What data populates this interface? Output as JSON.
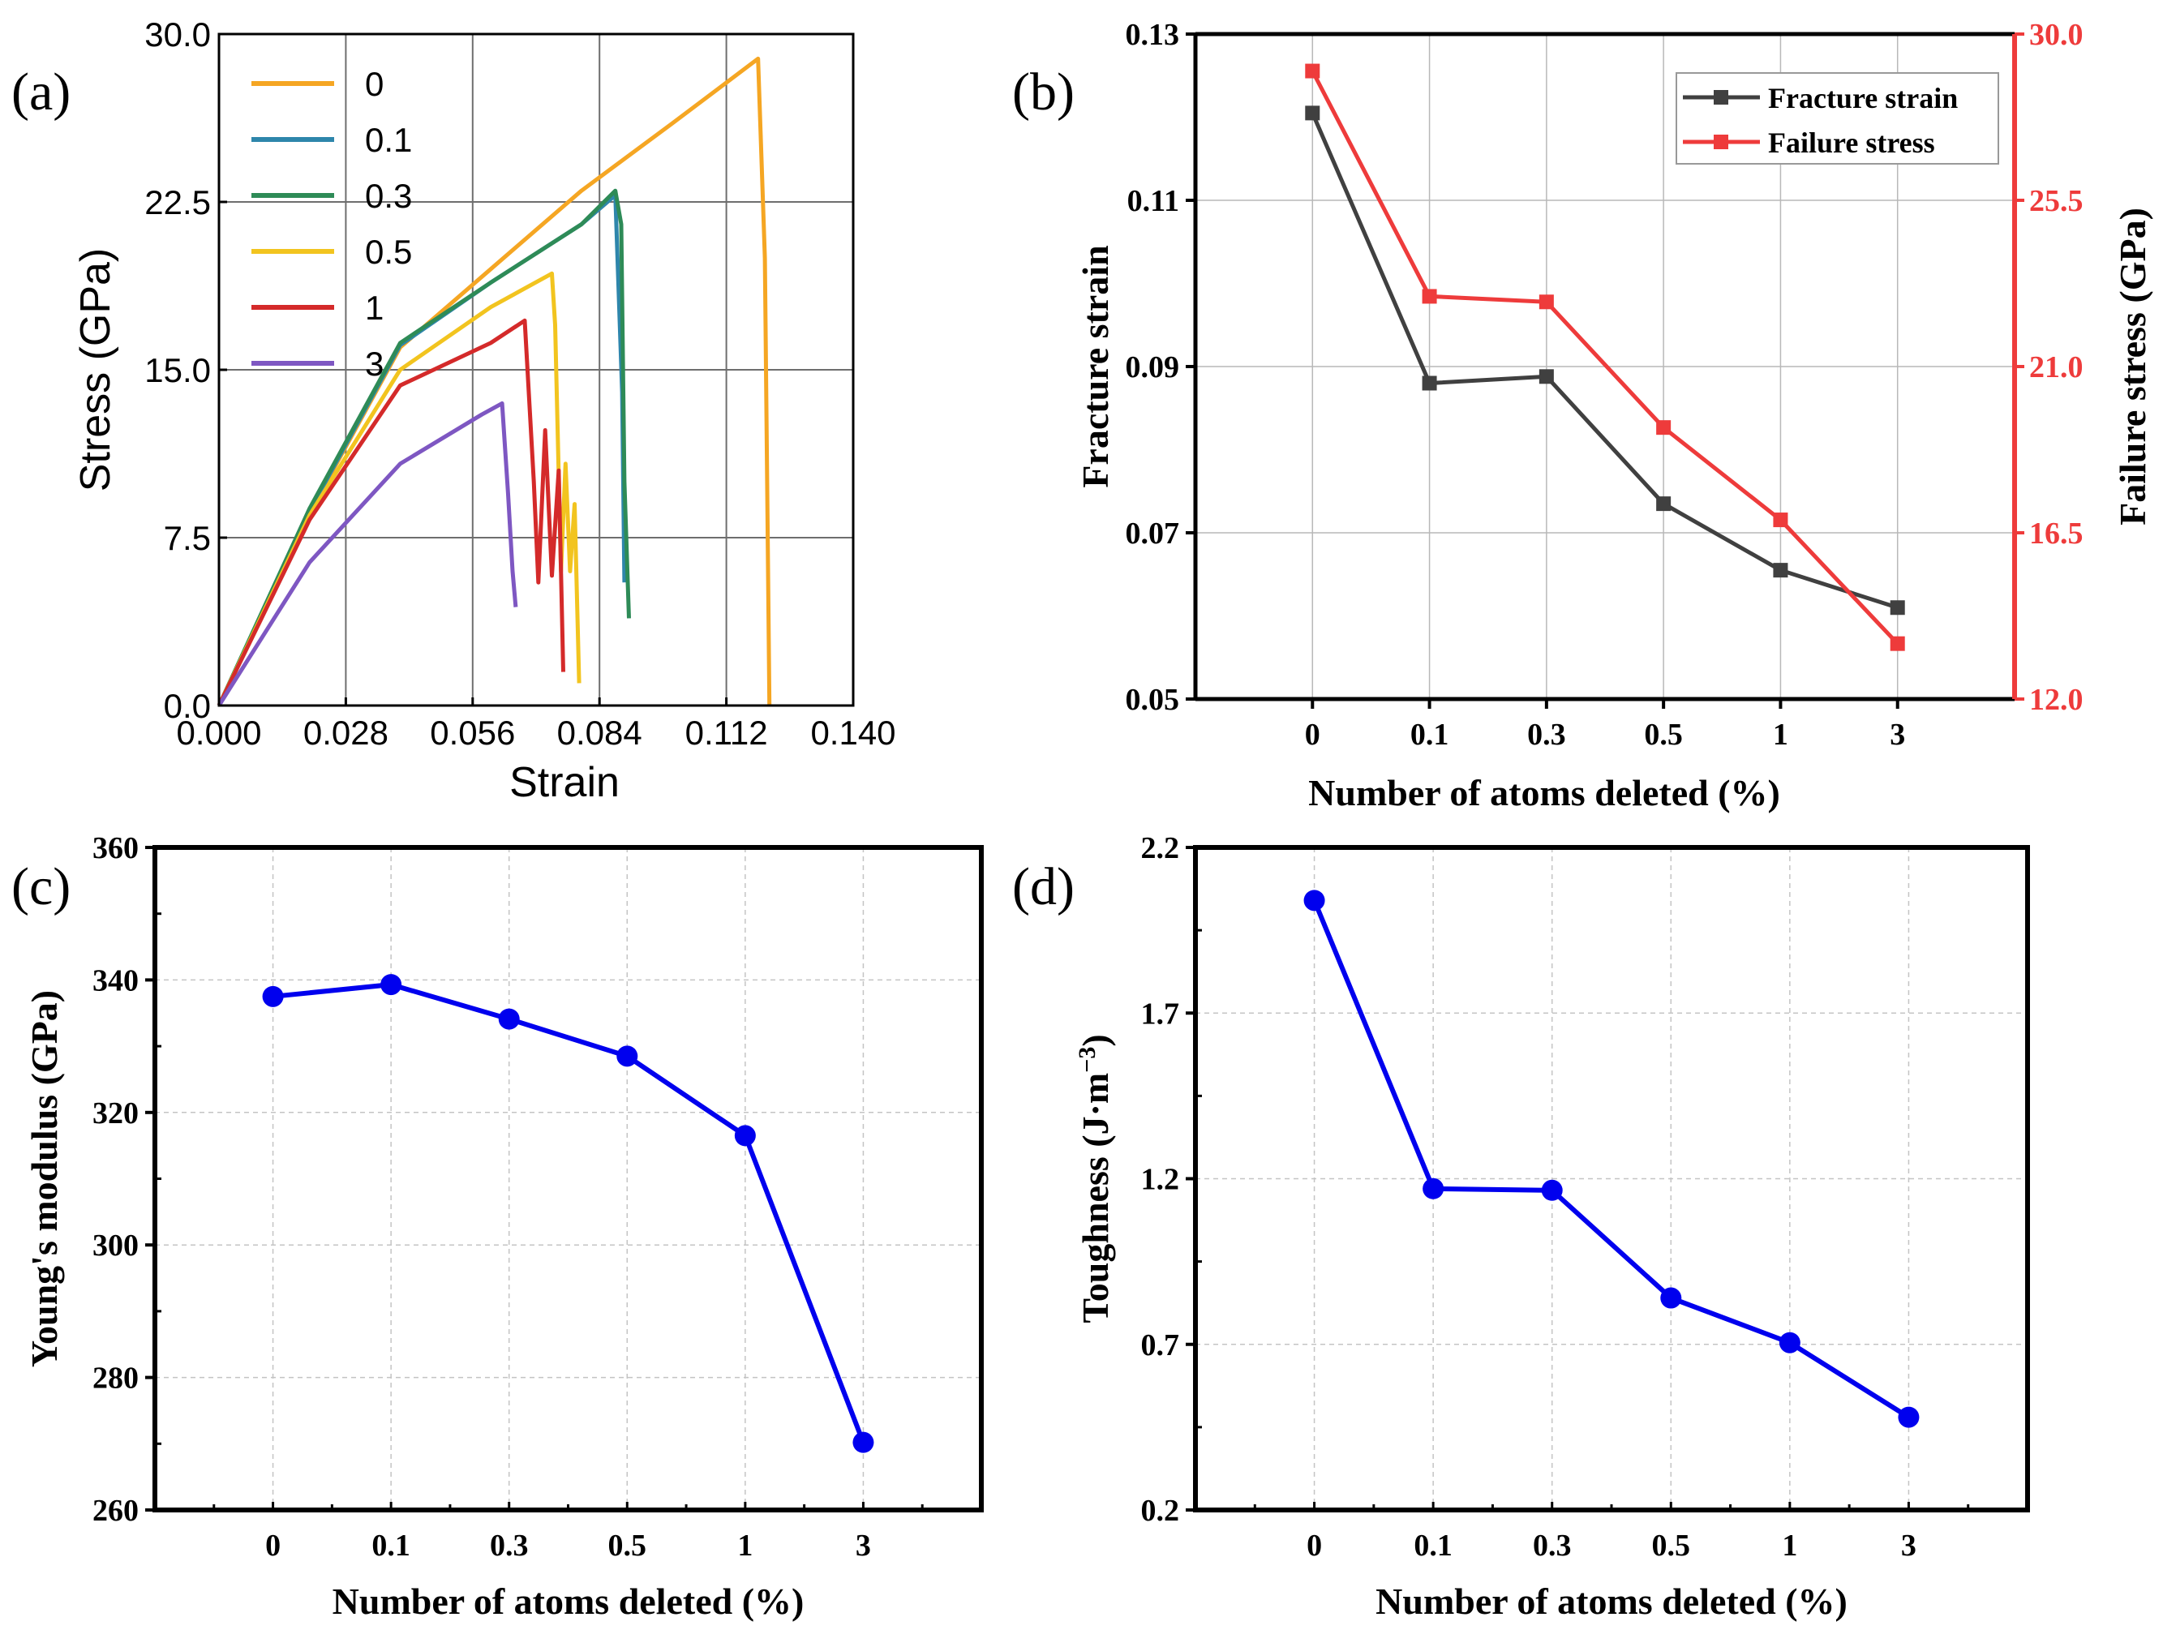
{
  "chart_data": [
    {
      "panel": "(a)",
      "type": "line",
      "xlabel": "Strain",
      "ylabel": "Stress (GPa)",
      "xlim": [
        0.0,
        0.14
      ],
      "ylim": [
        0.0,
        30.0
      ],
      "xticks": [
        "0.000",
        "0.028",
        "0.056",
        "0.084",
        "0.112",
        "0.140"
      ],
      "xtick_values": [
        0.0,
        0.028,
        0.056,
        0.084,
        0.112,
        0.14
      ],
      "yticks": [
        "0.0",
        "7.5",
        "15.0",
        "22.5",
        "30.0"
      ],
      "ytick_values": [
        0.0,
        7.5,
        15.0,
        22.5,
        30.0
      ],
      "grid": true,
      "legend_position": "top-left",
      "series": [
        {
          "name": "0",
          "color": "#F5A623",
          "x": [
            0,
            0.02,
            0.04,
            0.06,
            0.08,
            0.1,
            0.119,
            0.1205,
            0.1215
          ],
          "y": [
            0,
            8.6,
            16.0,
            19.5,
            23.0,
            26.0,
            28.9,
            20.0,
            0.0
          ]
        },
        {
          "name": "0.1",
          "color": "#2E86AB",
          "x": [
            0,
            0.02,
            0.04,
            0.06,
            0.08,
            0.0875,
            0.089,
            0.0895
          ],
          "y": [
            0,
            8.7,
            16.1,
            18.9,
            21.5,
            22.8,
            14.0,
            5.5
          ]
        },
        {
          "name": "0.3",
          "color": "#2E8B57",
          "x": [
            0,
            0.02,
            0.04,
            0.06,
            0.08,
            0.0875,
            0.0888,
            0.0895,
            0.0905
          ],
          "y": [
            0,
            8.8,
            16.2,
            18.9,
            21.5,
            23.0,
            21.5,
            10.0,
            3.9
          ]
        },
        {
          "name": "0.5",
          "color": "#F2C41F",
          "x": [
            0,
            0.02,
            0.04,
            0.06,
            0.0735,
            0.0742,
            0.0755,
            0.0765,
            0.0775,
            0.0785,
            0.0795
          ],
          "y": [
            0,
            8.5,
            15.0,
            17.8,
            19.3,
            17.0,
            6.0,
            10.8,
            6.0,
            9.0,
            1.0
          ]
        },
        {
          "name": "1",
          "color": "#D42A2A",
          "x": [
            0,
            0.02,
            0.04,
            0.06,
            0.0675,
            0.0695,
            0.0705,
            0.072,
            0.0735,
            0.075,
            0.076
          ],
          "y": [
            0,
            8.3,
            14.3,
            16.2,
            17.2,
            10.0,
            5.5,
            12.3,
            5.8,
            10.5,
            1.5
          ]
        },
        {
          "name": "3",
          "color": "#7E57C2",
          "x": [
            0,
            0.02,
            0.04,
            0.058,
            0.0625,
            0.0638,
            0.0648,
            0.0655
          ],
          "y": [
            0,
            6.4,
            10.8,
            13.0,
            13.5,
            9.5,
            6.0,
            4.4
          ]
        }
      ]
    },
    {
      "panel": "(b)",
      "type": "line",
      "xlabel": "Number of atoms deleted (%)",
      "ylabel": "Fracture strain",
      "ylabel_right": "Failure stress (GPa)",
      "categories": [
        "0",
        "0.1",
        "0.3",
        "0.5",
        "1",
        "3"
      ],
      "ylim": [
        0.05,
        0.13
      ],
      "ylim_right": [
        12.0,
        30.0
      ],
      "yticks": [
        "0.05",
        "0.07",
        "0.09",
        "0.11",
        "0.13"
      ],
      "ytick_values": [
        0.05,
        0.07,
        0.09,
        0.11,
        0.13
      ],
      "yticks_right": [
        "12.0",
        "16.5",
        "21.0",
        "25.5",
        "30.0"
      ],
      "ytick_values_right": [
        12.0,
        16.5,
        21.0,
        25.5,
        30.0
      ],
      "grid": true,
      "legend_position": "top-right",
      "series": [
        {
          "name": "Fracture strain",
          "axis": "left",
          "color": "#404040",
          "values": [
            0.1205,
            0.088,
            0.0888,
            0.0735,
            0.0655,
            0.061
          ]
        },
        {
          "name": "Failure stress",
          "axis": "right",
          "color": "#EE3B3B",
          "values": [
            29.0,
            22.9,
            22.75,
            19.35,
            16.85,
            13.5
          ]
        }
      ]
    },
    {
      "panel": "(c)",
      "type": "line",
      "xlabel": "Number of atoms deleted (%)",
      "ylabel": "Young's modulus (GPa)",
      "categories": [
        "0",
        "0.1",
        "0.3",
        "0.5",
        "1",
        "3"
      ],
      "ylim": [
        260,
        360
      ],
      "yticks": [
        "260",
        "280",
        "300",
        "320",
        "340",
        "360"
      ],
      "ytick_values": [
        260,
        280,
        300,
        320,
        340,
        360
      ],
      "grid": true,
      "series": [
        {
          "name": "Young's modulus",
          "color": "#0000EE",
          "values": [
            337.5,
            339.3,
            334.1,
            328.5,
            316.5,
            270.2
          ]
        }
      ]
    },
    {
      "panel": "(d)",
      "type": "line",
      "xlabel": "Number of atoms deleted (%)",
      "ylabel": "Toughness (J·m",
      "ylabel_sup": "−3",
      "ylabel_close": ")",
      "categories": [
        "0",
        "0.1",
        "0.3",
        "0.5",
        "1",
        "3"
      ],
      "ylim": [
        0.2,
        2.2
      ],
      "yticks": [
        "0.2",
        "0.7",
        "1.2",
        "1.7",
        "2.2"
      ],
      "ytick_values": [
        0.2,
        0.7,
        1.2,
        1.7,
        2.2
      ],
      "grid": true,
      "series": [
        {
          "name": "Toughness",
          "color": "#0000EE",
          "values": [
            2.04,
            1.17,
            1.165,
            0.84,
            0.705,
            0.48
          ]
        }
      ]
    }
  ]
}
